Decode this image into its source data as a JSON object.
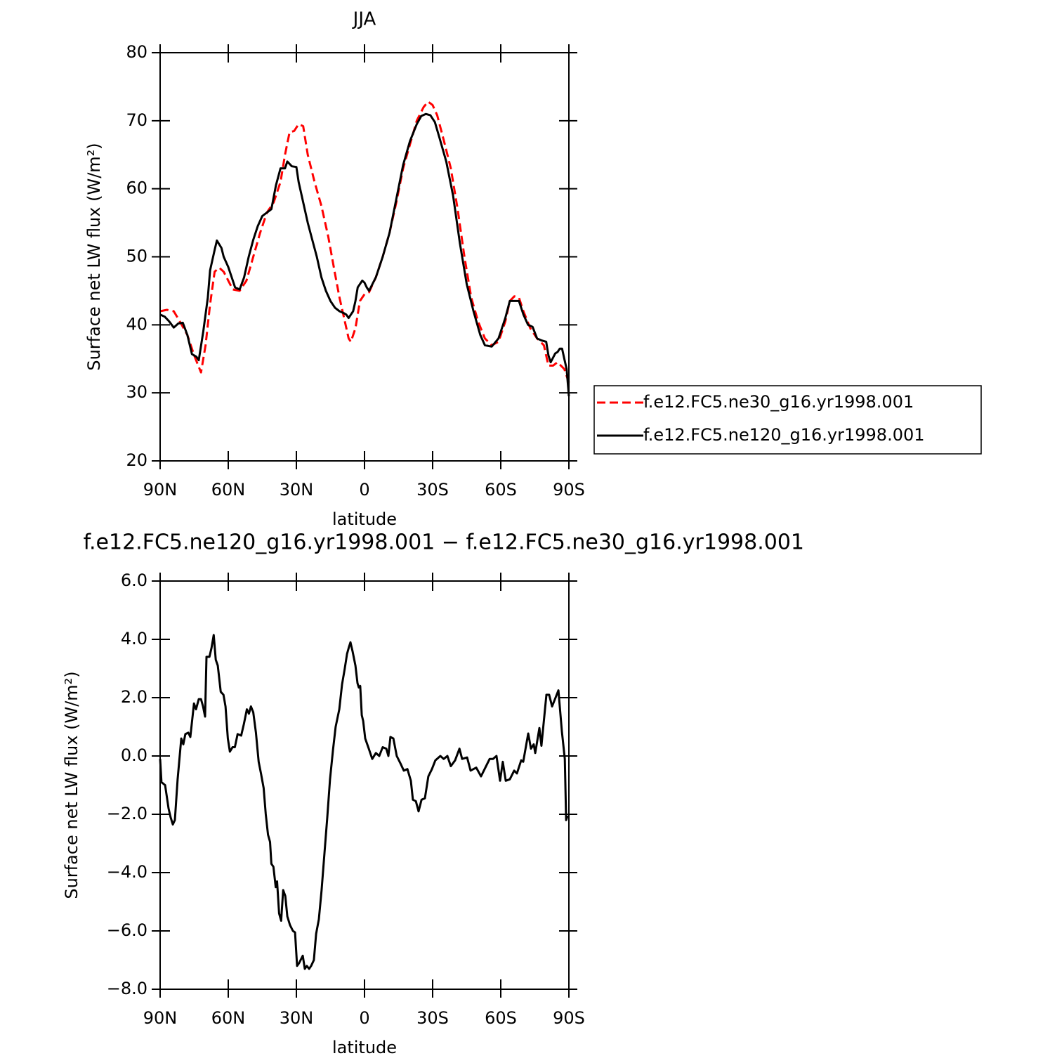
{
  "chart_data": [
    {
      "type": "line",
      "title": "JJA",
      "xlabel": "latitude",
      "ylabel": "Surface net LW flux (W/m²)",
      "xlim": [
        90,
        -90
      ],
      "xticks": [
        {
          "value": 90,
          "label": "90N"
        },
        {
          "value": 60,
          "label": "60N"
        },
        {
          "value": 30,
          "label": "30N"
        },
        0,
        {
          "value": -30,
          "label": "30S"
        },
        {
          "value": -60,
          "label": "60S"
        },
        {
          "value": -90,
          "label": "90S"
        }
      ],
      "ylim": [
        20,
        80
      ],
      "yticks": [
        20,
        30,
        40,
        50,
        60,
        70,
        80
      ],
      "legend": "right",
      "series": [
        {
          "name": "f.e12.FC5.ne30_g16.yr1998.001",
          "color": "#ff0000",
          "style": "dashed",
          "x": [
            90,
            87,
            84,
            81,
            78,
            75,
            72,
            70,
            68,
            66,
            64,
            62,
            60,
            58,
            55,
            52,
            49,
            46,
            43,
            40,
            37,
            35,
            33,
            31,
            29,
            27,
            25,
            22,
            19,
            16,
            13,
            11,
            9,
            7,
            6,
            4,
            2,
            0,
            -2,
            -5,
            -8,
            -11,
            -14,
            -17,
            -20,
            -23,
            -26,
            -28,
            -30,
            -32,
            -35,
            -38,
            -41,
            -44,
            -47,
            -50,
            -53,
            -56,
            -59,
            -62,
            -64,
            -66,
            -68,
            -70,
            -73,
            -76,
            -79,
            -81,
            -83,
            -85,
            -88,
            -90
          ],
          "values": [
            42,
            42.2,
            42,
            40.3,
            38.5,
            35.5,
            33,
            37,
            43,
            47.8,
            48.4,
            47.8,
            46.5,
            45.2,
            45,
            46.5,
            50,
            53.5,
            56.5,
            58,
            61,
            65,
            68.3,
            68.5,
            69.5,
            69.2,
            65,
            61,
            57.5,
            53,
            47.5,
            44,
            41,
            38,
            37.5,
            39.5,
            43.5,
            44.5,
            44.8,
            47,
            50,
            53.5,
            58,
            63,
            66.5,
            70,
            72,
            72.8,
            72.3,
            70.8,
            67,
            63,
            57,
            50,
            44,
            40.5,
            38,
            37,
            37.5,
            40.5,
            43.5,
            44.2,
            44,
            42,
            39.5,
            38,
            37,
            34,
            34,
            34.5,
            33.5,
            31.5
          ]
        },
        {
          "name": "f.e12.FC5.ne120_g16.yr1998.001",
          "color": "#000000",
          "style": "solid",
          "x": [
            90,
            88,
            86,
            84,
            82,
            80,
            78,
            76,
            74,
            73,
            71,
            69,
            68,
            66,
            65,
            63,
            62,
            60,
            58,
            57,
            55,
            53,
            51,
            49,
            47,
            45,
            43,
            41,
            39,
            37,
            35,
            34,
            32,
            30,
            29,
            27,
            25,
            23,
            21,
            19,
            17,
            15,
            13,
            11,
            9,
            8,
            7,
            5,
            4,
            3,
            1,
            0,
            -1,
            -2,
            -5,
            -8,
            -11,
            -14,
            -17,
            -20,
            -23,
            -25,
            -27,
            -29,
            -31,
            -33,
            -36,
            -39,
            -42,
            -45,
            -48,
            -51,
            -53,
            -56,
            -59,
            -62,
            -64,
            -66,
            -68,
            -70,
            -72,
            -74,
            -76,
            -78,
            -80,
            -81,
            -82,
            -84,
            -85,
            -86,
            -87,
            -88,
            -89,
            -90
          ],
          "values": [
            41.5,
            41.2,
            40.5,
            39.6,
            40.2,
            40.3,
            38.5,
            35.7,
            35.3,
            34.8,
            39,
            44,
            48,
            51,
            52.4,
            51.3,
            50,
            48.5,
            46.5,
            45.5,
            45.2,
            47,
            50,
            52.5,
            54.5,
            56,
            56.5,
            57,
            60.5,
            63,
            63,
            64,
            63.3,
            63.2,
            61,
            58,
            55,
            52.5,
            50,
            47,
            45,
            43.5,
            42.5,
            42,
            41.7,
            41.5,
            41,
            42,
            43.5,
            45.5,
            46.5,
            46.2,
            45.5,
            45,
            47,
            50,
            53.5,
            58.5,
            63.5,
            67,
            69.5,
            70.7,
            71,
            70.8,
            69.8,
            67.5,
            64,
            59,
            52,
            46,
            42,
            38.5,
            37,
            36.8,
            38,
            41,
            43.5,
            43.5,
            43.5,
            41.5,
            40,
            39.7,
            38,
            37.7,
            37.5,
            35.5,
            34.5,
            35.8,
            36,
            36.5,
            36.5,
            35,
            33.5,
            29.5
          ]
        }
      ]
    },
    {
      "type": "line",
      "title": "f.e12.FC5.ne120_g16.yr1998.001 − f.e12.FC5.ne30_g16.yr1998.001",
      "xlabel": "latitude",
      "ylabel": "Surface net LW flux (W/m²)",
      "xlim": [
        90,
        -90
      ],
      "xticks": [
        {
          "value": 90,
          "label": "90N"
        },
        {
          "value": 60,
          "label": "60N"
        },
        {
          "value": 30,
          "label": "30N"
        },
        0,
        {
          "value": -30,
          "label": "30S"
        },
        {
          "value": -60,
          "label": "60S"
        },
        {
          "value": -90,
          "label": "90S"
        }
      ],
      "ylim": [
        -8,
        6
      ],
      "yticks": [
        {
          "value": -8,
          "label": "−8.0"
        },
        {
          "value": -6,
          "label": "−6.0"
        },
        {
          "value": -4,
          "label": "−4.0"
        },
        {
          "value": -2,
          "label": "−2.0"
        },
        {
          "value": 0,
          "label": "0.0"
        },
        {
          "value": 2,
          "label": "2.0"
        },
        {
          "value": 4,
          "label": "4.0"
        },
        {
          "value": 6,
          "label": "6.0"
        }
      ],
      "series": [
        {
          "color": "#000000",
          "style": "solid",
          "x": [
            90,
            89.4,
            87.8,
            86.3,
            85.4,
            84.4,
            83.5,
            82.3,
            80.7,
            79.8,
            78.9,
            77.6,
            76.7,
            75.1,
            74.2,
            73,
            72,
            71.1,
            70.2,
            69.6,
            68.3,
            67.4,
            66.4,
            65.5,
            64.6,
            63.3,
            62.1,
            61.2,
            60.2,
            59.3,
            58.1,
            57.1,
            55.9,
            54.3,
            53.1,
            51.8,
            50.9,
            50,
            49,
            47.8,
            46.6,
            45.6,
            44.4,
            43.5,
            42.5,
            41.6,
            41,
            40.1,
            39.1,
            38.5,
            37.6,
            36.7,
            35.8,
            34.9,
            34,
            32.8,
            31.5,
            30.6,
            29.7,
            28.8,
            27.2,
            26.3,
            25.4,
            24.4,
            23.5,
            22.3,
            21.3,
            20.1,
            18.9,
            17.6,
            16.4,
            15.2,
            13.9,
            12.7,
            11.1,
            9.9,
            8.7,
            7.7,
            6.8,
            6.2,
            5.3,
            4,
            3.1,
            2.5,
            1.9,
            1.2,
            0.6,
            -0.3,
            -1.9,
            -3.4,
            -5,
            -6.5,
            -8,
            -9.6,
            -10.5,
            -11.4,
            -12.7,
            -14.2,
            -15.8,
            -17.3,
            -18.9,
            -20.4,
            -21.3,
            -22.6,
            -23.8,
            -25.1,
            -26.6,
            -28.1,
            -29.7,
            -31.2,
            -33.4,
            -34.9,
            -36.5,
            -38,
            -39.9,
            -41.8,
            -43,
            -45.2,
            -46.7,
            -49.2,
            -51.3,
            -52.9,
            -55.1,
            -56.6,
            -58.1,
            -59.7,
            -60.9,
            -62.2,
            -64,
            -65.9,
            -67.1,
            -69,
            -69.9,
            -72.1,
            -73.3,
            -74.5,
            -75.2,
            -77,
            -77.9,
            -80.1,
            -81.3,
            -82.6,
            -85.4,
            -86.9,
            -88.2,
            -88.8,
            -89.4
          ],
          "values": [
            -0.1,
            -0.9,
            -1,
            -1.8,
            -2.1,
            -2.35,
            -2.2,
            -0.8,
            0.6,
            0.4,
            0.75,
            0.8,
            0.65,
            1.8,
            1.6,
            1.95,
            1.95,
            1.7,
            1.35,
            3.4,
            3.4,
            3.7,
            4.15,
            3.3,
            3.1,
            2.2,
            2.1,
            1.7,
            0.6,
            0.15,
            0.3,
            0.3,
            0.75,
            0.7,
            1.1,
            1.6,
            1.45,
            1.7,
            1.5,
            0.8,
            -0.2,
            -0.6,
            -1.1,
            -2,
            -2.7,
            -2.95,
            -3.7,
            -3.8,
            -4.5,
            -4.3,
            -5.4,
            -5.65,
            -4.6,
            -4.8,
            -5.5,
            -5.8,
            -6,
            -6.05,
            -7.2,
            -7.1,
            -6.85,
            -7.3,
            -7.2,
            -7.3,
            -7.2,
            -7,
            -6.1,
            -5.6,
            -4.6,
            -3.3,
            -2.1,
            -0.8,
            0.2,
            1,
            1.6,
            2.45,
            3,
            3.5,
            3.75,
            3.9,
            3.6,
            3.1,
            2.5,
            2.35,
            2.4,
            1.4,
            1.2,
            0.6,
            0.25,
            -0.1,
            0.1,
            0,
            0.3,
            0.25,
            0,
            0.65,
            0.6,
            0,
            -0.25,
            -0.5,
            -0.45,
            -0.85,
            -1.5,
            -1.55,
            -1.9,
            -1.5,
            -1.45,
            -0.7,
            -0.45,
            -0.15,
            0,
            -0.1,
            0,
            -0.35,
            -0.15,
            0.25,
            -0.1,
            -0.05,
            -0.5,
            -0.4,
            -0.7,
            -0.45,
            -0.1,
            -0.1,
            0,
            -0.85,
            -0.2,
            -0.85,
            -0.8,
            -0.5,
            -0.6,
            -0.15,
            -0.2,
            0.77,
            0.25,
            0.4,
            0.1,
            0.96,
            0.35,
            2.1,
            2.1,
            1.7,
            2.25,
            0.85,
            -0.1,
            -2.2,
            -2.05
          ]
        }
      ]
    }
  ]
}
